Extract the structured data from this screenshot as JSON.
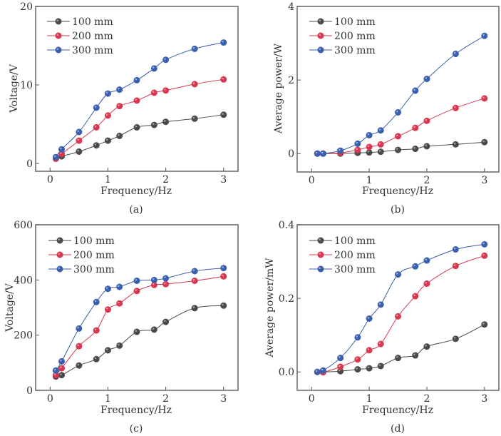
{
  "colors": {
    "100 mm": "#4a4a4a",
    "200 mm": "#d8374f",
    "300 mm": "#3a5fae"
  },
  "chart_data": [
    {
      "id": "a",
      "type": "line",
      "panel_label": "(a)",
      "xlabel": "Frequency/Hz",
      "ylabel": "Voltage/V",
      "xlim": [
        -0.25,
        3.25
      ],
      "ylim": [
        -1,
        20
      ],
      "xticks": [
        0,
        1,
        2,
        3
      ],
      "xtick_labels": [
        "0",
        "1",
        "2",
        "3"
      ],
      "yticks": [
        0,
        10,
        20
      ],
      "ytick_labels": [
        "0",
        "10",
        "20"
      ],
      "legend": "top-left",
      "x": [
        0.1,
        0.2,
        0.5,
        0.8,
        1.0,
        1.2,
        1.5,
        1.8,
        2.0,
        2.5,
        3.0
      ],
      "series": [
        {
          "name": "100 mm",
          "values": [
            0.6,
            0.9,
            1.5,
            2.3,
            2.9,
            3.5,
            4.6,
            4.9,
            5.3,
            5.7,
            6.2
          ]
        },
        {
          "name": "200 mm",
          "values": [
            0.6,
            1.2,
            2.9,
            4.6,
            6.1,
            7.3,
            8.0,
            9.0,
            9.3,
            10.1,
            10.7
          ]
        },
        {
          "name": "300 mm",
          "values": [
            0.8,
            1.8,
            4.0,
            7.1,
            8.9,
            9.4,
            10.6,
            12.1,
            13.2,
            14.6,
            15.4
          ]
        }
      ]
    },
    {
      "id": "b",
      "type": "line",
      "panel_label": "(b)",
      "xlabel": "Frequency/Hz",
      "ylabel": "Average power/W",
      "xlim": [
        -0.25,
        3.25
      ],
      "ylim": [
        -0.5,
        4
      ],
      "xticks": [
        0,
        1,
        2,
        3
      ],
      "xtick_labels": [
        "0",
        "1",
        "2",
        "3"
      ],
      "yticks": [
        0,
        2,
        4
      ],
      "ytick_labels": [
        "0",
        "2",
        "4"
      ],
      "legend": "top-left",
      "x": [
        0.1,
        0.2,
        0.5,
        0.8,
        1.0,
        1.2,
        1.5,
        1.8,
        2.0,
        2.5,
        3.0
      ],
      "series": [
        {
          "name": "100 mm",
          "values": [
            0.0,
            0.0,
            0.0,
            0.02,
            0.03,
            0.05,
            0.1,
            0.13,
            0.2,
            0.25,
            0.31
          ]
        },
        {
          "name": "200 mm",
          "values": [
            0.0,
            0.0,
            0.02,
            0.1,
            0.18,
            0.25,
            0.47,
            0.7,
            0.89,
            1.24,
            1.5
          ]
        },
        {
          "name": "300 mm",
          "values": [
            0.0,
            0.0,
            0.08,
            0.27,
            0.5,
            0.63,
            1.12,
            1.71,
            2.03,
            2.71,
            3.2
          ]
        }
      ]
    },
    {
      "id": "c",
      "type": "line",
      "panel_label": "(c)",
      "xlabel": "Frequency/Hz",
      "ylabel": "Voltage/V",
      "xlim": [
        -0.25,
        3.25
      ],
      "ylim": [
        0,
        600
      ],
      "xticks": [
        0,
        1,
        2,
        3
      ],
      "xtick_labels": [
        "0",
        "1",
        "2",
        "3"
      ],
      "yticks": [
        0,
        200,
        400,
        600
      ],
      "ytick_labels": [
        "0",
        "200",
        "400",
        "600"
      ],
      "legend": "top-left",
      "x": [
        0.1,
        0.2,
        0.5,
        0.8,
        1.0,
        1.2,
        1.5,
        1.8,
        2.0,
        2.5,
        3.0
      ],
      "series": [
        {
          "name": "100 mm",
          "values": [
            50,
            55,
            90,
            113,
            145,
            162,
            212,
            220,
            248,
            298,
            307
          ]
        },
        {
          "name": "200 mm",
          "values": [
            55,
            80,
            160,
            217,
            293,
            315,
            360,
            382,
            385,
            397,
            413
          ]
        },
        {
          "name": "300 mm",
          "values": [
            72,
            105,
            224,
            320,
            368,
            375,
            397,
            400,
            406,
            432,
            443
          ]
        }
      ]
    },
    {
      "id": "d",
      "type": "line",
      "panel_label": "(d)",
      "xlabel": "Frequency/Hz",
      "ylabel": "Average power/mW",
      "xlim": [
        -0.25,
        3.25
      ],
      "ylim": [
        -0.05,
        0.4
      ],
      "xticks": [
        0,
        1,
        2,
        3
      ],
      "xtick_labels": [
        "0",
        "1",
        "2",
        "3"
      ],
      "yticks": [
        0.0,
        0.2,
        0.4
      ],
      "ytick_labels": [
        "0.0",
        "0.2",
        "0.4"
      ],
      "legend": "top-left",
      "x": [
        0.1,
        0.2,
        0.5,
        0.8,
        1.0,
        1.2,
        1.5,
        1.8,
        2.0,
        2.5,
        3.0
      ],
      "series": [
        {
          "name": "100 mm",
          "values": [
            0.0,
            0.0,
            0.002,
            0.007,
            0.01,
            0.016,
            0.038,
            0.045,
            0.069,
            0.09,
            0.129
          ]
        },
        {
          "name": "200 mm",
          "values": [
            0.0,
            -0.001,
            0.014,
            0.034,
            0.059,
            0.076,
            0.151,
            0.206,
            0.24,
            0.288,
            0.316
          ]
        },
        {
          "name": "300 mm",
          "values": [
            0.0,
            0.004,
            0.038,
            0.094,
            0.145,
            0.183,
            0.265,
            0.287,
            0.303,
            0.333,
            0.347
          ]
        }
      ]
    }
  ]
}
